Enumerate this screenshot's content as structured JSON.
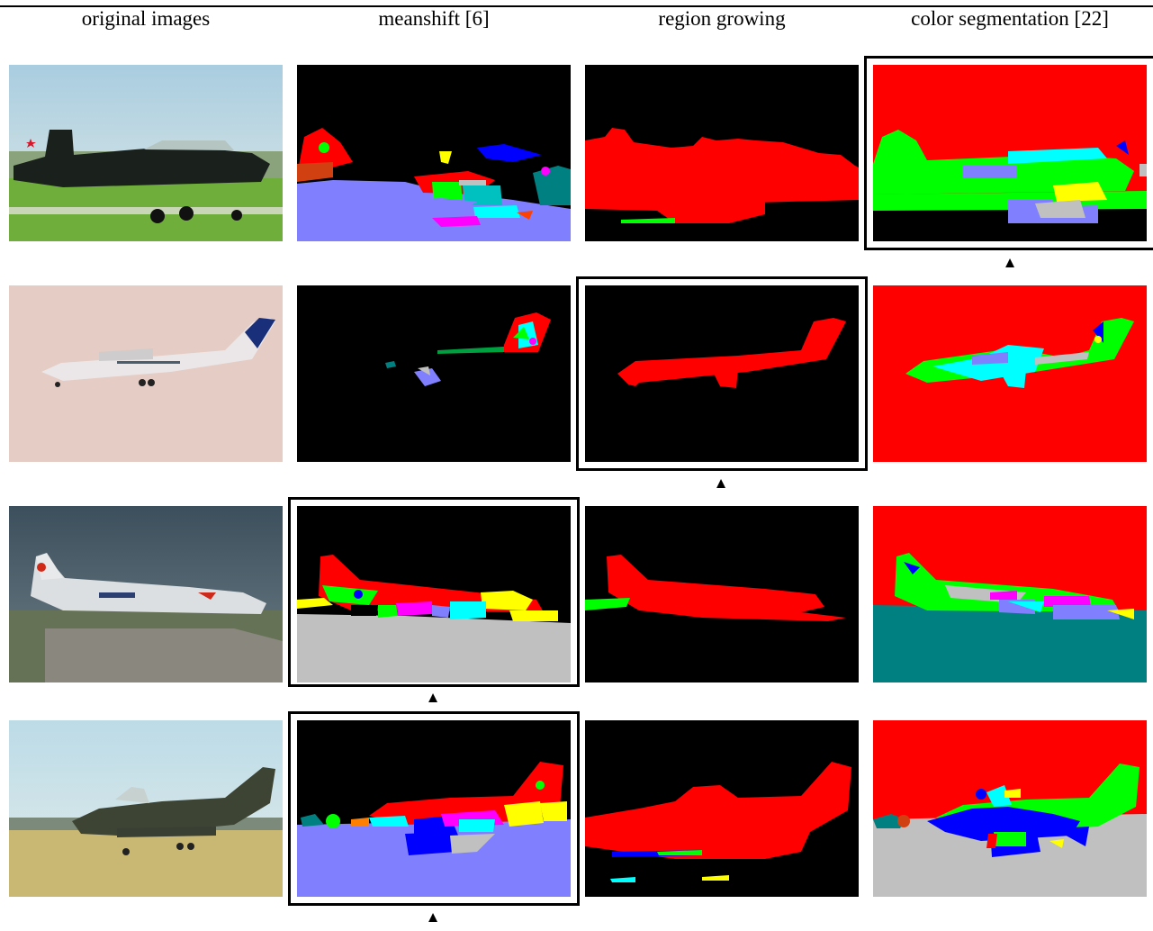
{
  "figure": {
    "column_headers": [
      "original images",
      "meanshift [6]",
      "region growing",
      "color segmentation [22]"
    ],
    "marker_glyph": "▲",
    "row_labels_aria": [
      "row-1-airplane",
      "row-2-airplane",
      "row-3-airplane",
      "row-4-airplane"
    ],
    "selected": [
      {
        "row": 1,
        "column": "color segmentation [22]"
      },
      {
        "row": 2,
        "column": "region growing"
      },
      {
        "row": 3,
        "column": "meanshift [6]"
      },
      {
        "row": 4,
        "column": "meanshift [6]"
      }
    ],
    "colors": {
      "background_black": "#000000",
      "red": "#ff0000",
      "green": "#00ff00",
      "blue": "#0000ff",
      "cyan": "#00ffff",
      "magenta": "#ff00ff",
      "yellow": "#ffff00",
      "lavender": "#8080ff",
      "gray": "#c0c0c0",
      "teal": "#008080",
      "orange": "#ff8000"
    }
  }
}
